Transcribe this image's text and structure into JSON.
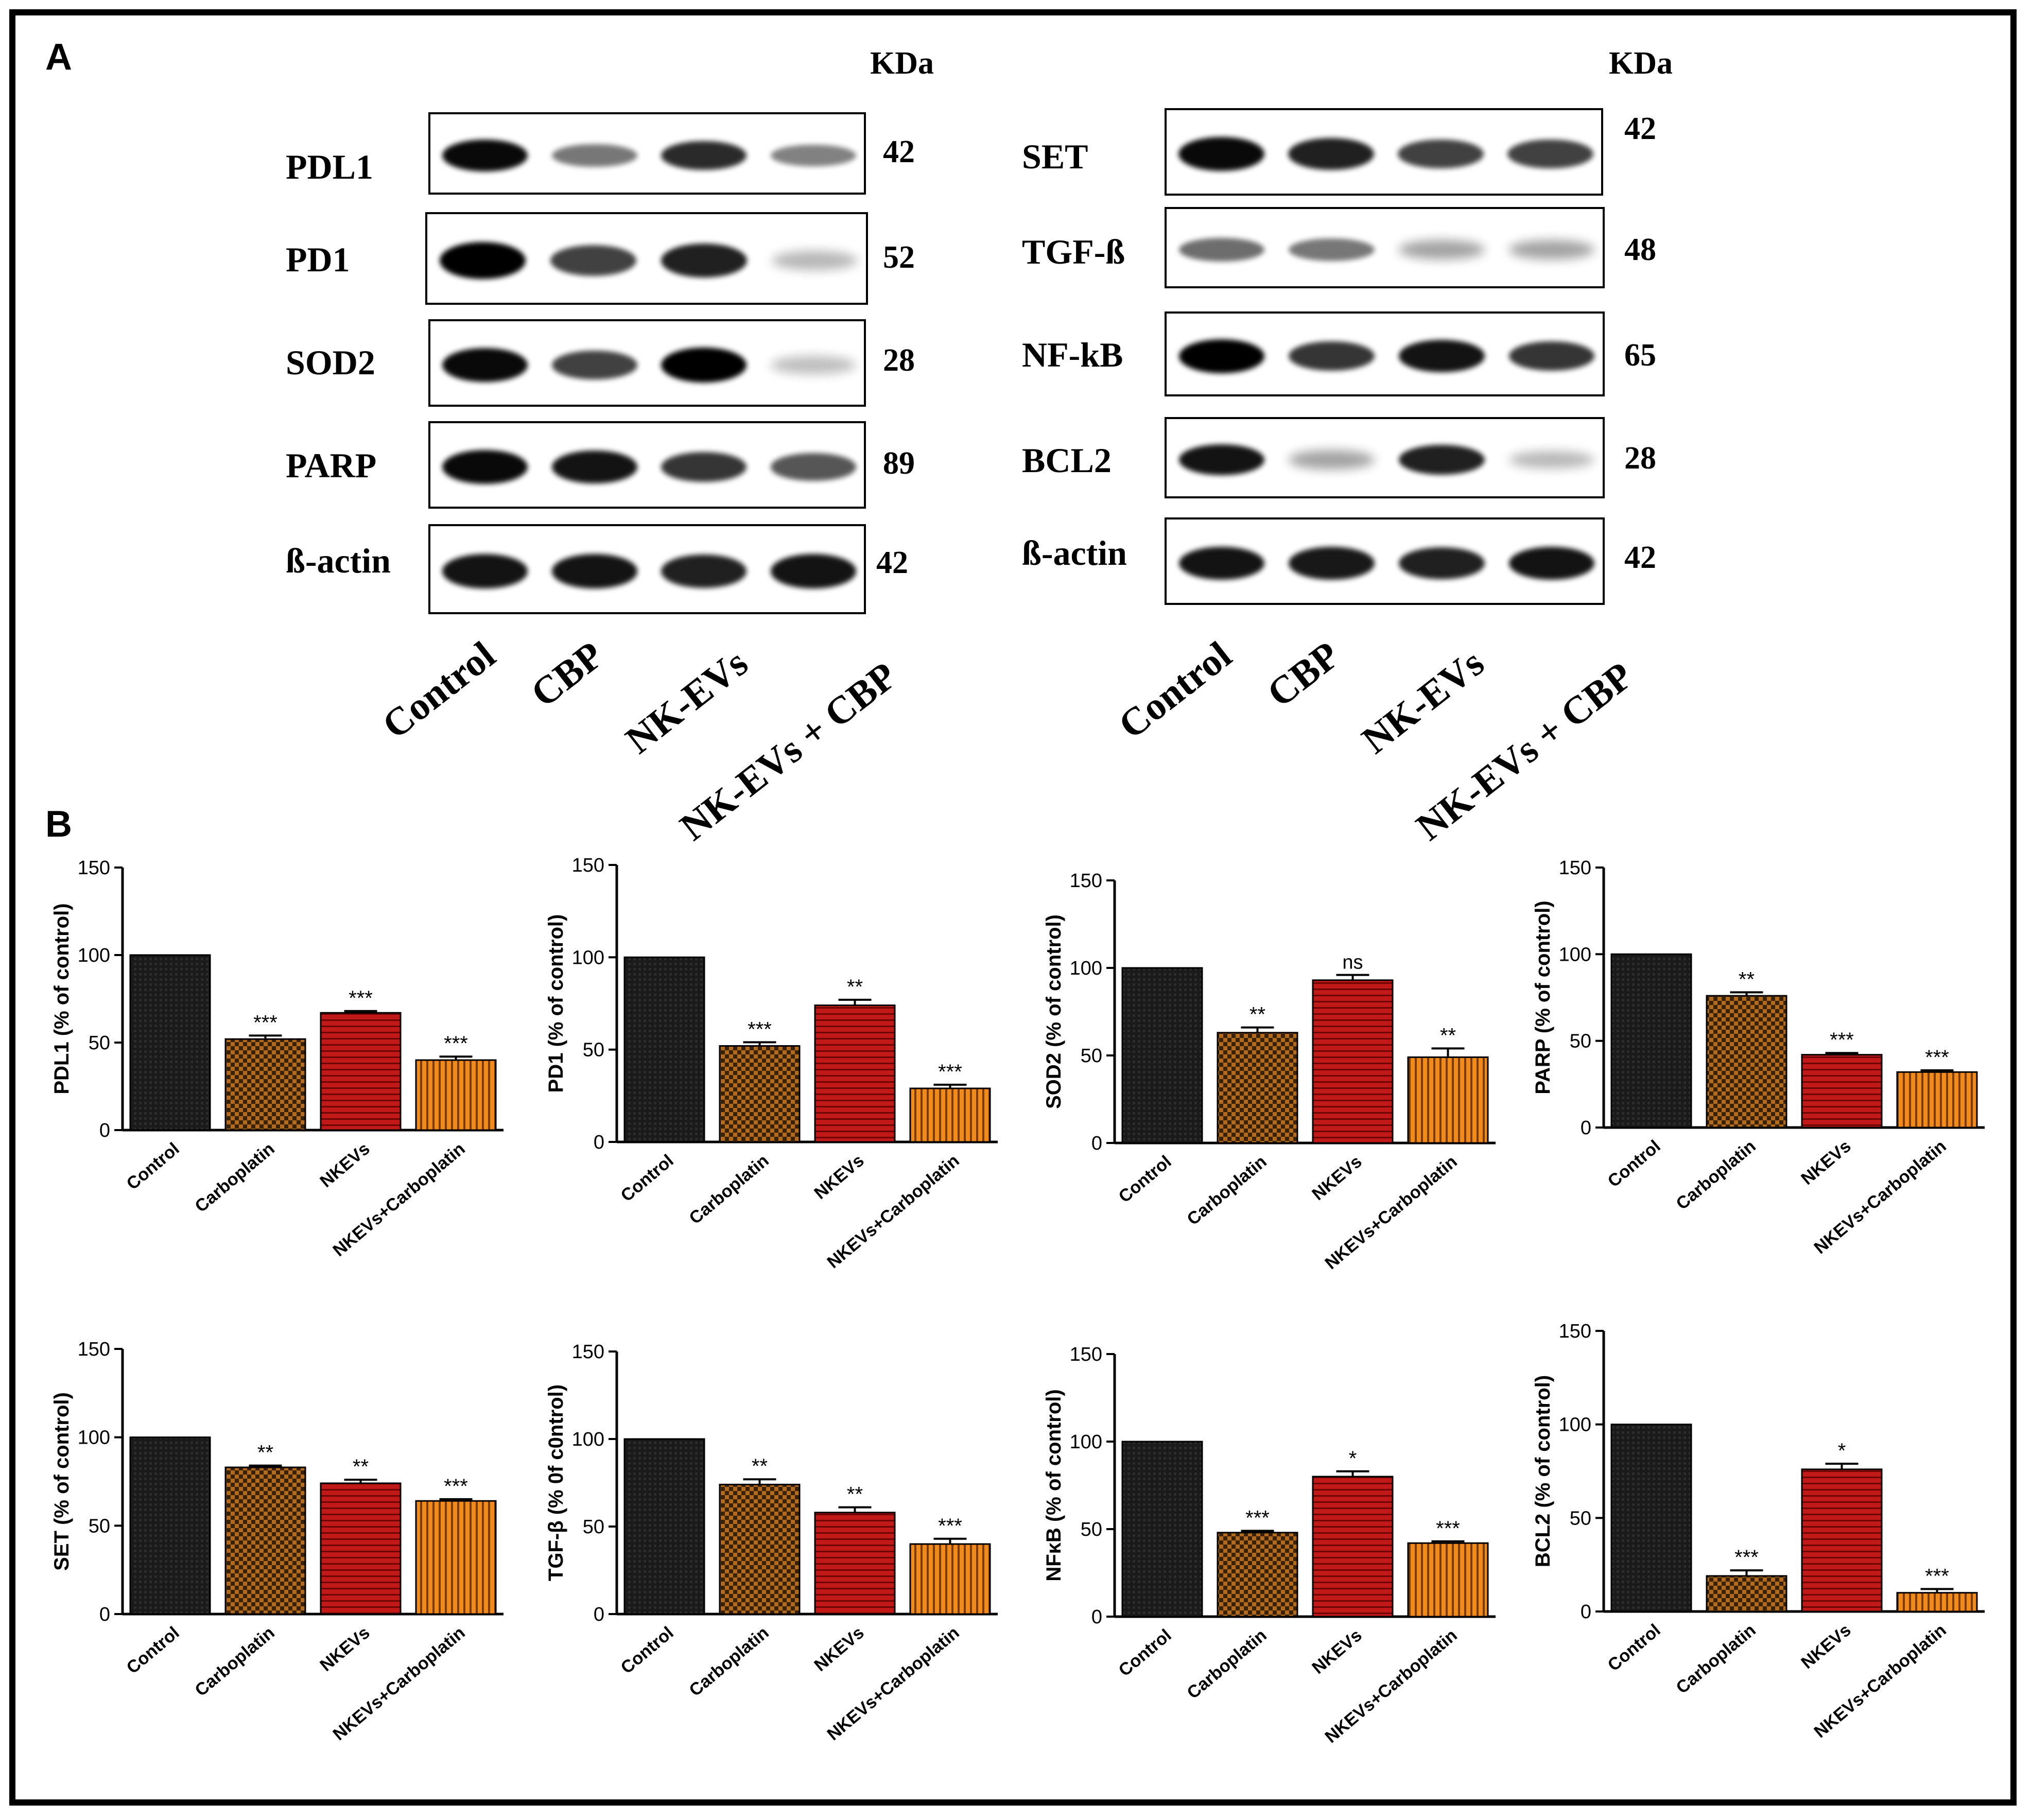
{
  "panel_a": {
    "letter": "A",
    "kda_label": "KDa",
    "lanes": [
      "Control",
      "CBP",
      "NK-EVs",
      "NK-EVs + CBP"
    ],
    "left_blots": [
      {
        "name": "PDL1",
        "kda": "42",
        "intensity": [
          0.95,
          0.45,
          0.8,
          0.4
        ]
      },
      {
        "name": "PD1",
        "kda": "52",
        "intensity": [
          1.0,
          0.7,
          0.85,
          0.15
        ]
      },
      {
        "name": "SOD2",
        "kda": "28",
        "intensity": [
          0.95,
          0.7,
          1.0,
          0.12
        ]
      },
      {
        "name": "PARP",
        "kda": "89",
        "intensity": [
          0.95,
          0.9,
          0.75,
          0.6
        ]
      },
      {
        "name": "ß-actin",
        "kda": "42",
        "intensity": [
          0.9,
          0.9,
          0.85,
          0.9
        ]
      }
    ],
    "right_blots": [
      {
        "name": "SET",
        "kda": "42",
        "intensity": [
          0.95,
          0.85,
          0.7,
          0.7
        ]
      },
      {
        "name": "TGF-ß",
        "kda": "48",
        "intensity": [
          0.5,
          0.45,
          0.25,
          0.25
        ]
      },
      {
        "name": "NF-kB",
        "kda": "65",
        "intensity": [
          1.0,
          0.75,
          0.9,
          0.75
        ]
      },
      {
        "name": "BCL2",
        "kda": "28",
        "intensity": [
          0.9,
          0.25,
          0.85,
          0.15
        ]
      },
      {
        "name": "ß-actin",
        "kda": "42",
        "intensity": [
          0.9,
          0.88,
          0.85,
          0.9
        ]
      }
    ]
  },
  "panel_b": {
    "letter": "B",
    "colors": {
      "control": "#1a1a1a",
      "carboplatin": "#b26a1c",
      "nkevs": "#c11818",
      "combo": "#f08a1a"
    },
    "chart_data": [
      {
        "type": "bar",
        "ylabel": "PDL1 (% of control)",
        "ylim": [
          0,
          150
        ],
        "yticks": [
          "0",
          "50",
          "100",
          "150"
        ],
        "categories": [
          "Control",
          "Carboplatin",
          "NKEVs",
          "NKEVs+Carboplatin"
        ],
        "values": [
          100,
          52,
          67,
          40
        ],
        "errors": [
          0,
          2,
          1,
          2
        ],
        "significance": [
          "",
          "***",
          "***",
          "***"
        ]
      },
      {
        "type": "bar",
        "ylabel": "PD1 (% of control)",
        "ylim": [
          0,
          150
        ],
        "yticks": [
          "0",
          "50",
          "100",
          "150"
        ],
        "categories": [
          "Control",
          "Carboplatin",
          "NKEVs",
          "NKEVs+Carboplatin"
        ],
        "values": [
          100,
          52,
          74,
          29
        ],
        "errors": [
          0,
          2,
          3,
          2
        ],
        "significance": [
          "",
          "***",
          "**",
          "***"
        ]
      },
      {
        "type": "bar",
        "ylabel": "SOD2 (% of control)",
        "ylim": [
          0,
          150
        ],
        "yticks": [
          "0",
          "50",
          "100",
          "150"
        ],
        "categories": [
          "Control",
          "Carboplatin",
          "NKEVs",
          "NKEVs+Carboplatin"
        ],
        "values": [
          100,
          63,
          93,
          49
        ],
        "errors": [
          0,
          3,
          3,
          5
        ],
        "significance": [
          "",
          "**",
          "ns",
          "**"
        ]
      },
      {
        "type": "bar",
        "ylabel": "PARP (% of control)",
        "ylim": [
          0,
          150
        ],
        "yticks": [
          "0",
          "50",
          "100",
          "150"
        ],
        "categories": [
          "Control",
          "Carboplatin",
          "NKEVs",
          "NKEVs+Carboplatin"
        ],
        "values": [
          100,
          76,
          42,
          32
        ],
        "errors": [
          0,
          2,
          1,
          1
        ],
        "significance": [
          "",
          "**",
          "***",
          "***"
        ]
      },
      {
        "type": "bar",
        "ylabel": "SET (% of control)",
        "ylim": [
          0,
          150
        ],
        "yticks": [
          "0",
          "50",
          "100",
          "150"
        ],
        "categories": [
          "Control",
          "Carboplatin",
          "NKEVs",
          "NKEVs+Carboplatin"
        ],
        "values": [
          100,
          83,
          74,
          64
        ],
        "errors": [
          0,
          1,
          2,
          1
        ],
        "significance": [
          "",
          "**",
          "**",
          "***"
        ]
      },
      {
        "type": "bar",
        "ylabel": "TGF-β (% 0f c0ntrol)",
        "ylim": [
          0,
          150
        ],
        "yticks": [
          "0",
          "50",
          "100",
          "150"
        ],
        "categories": [
          "Control",
          "Carboplatin",
          "NKEVs",
          "NKEVs+Carboplatin"
        ],
        "values": [
          100,
          74,
          58,
          40
        ],
        "errors": [
          0,
          3,
          3,
          3
        ],
        "significance": [
          "",
          "**",
          "**",
          "***"
        ]
      },
      {
        "type": "bar",
        "ylabel": "NFκB (% of control)",
        "ylim": [
          0,
          150
        ],
        "yticks": [
          "0",
          "50",
          "100",
          "150"
        ],
        "categories": [
          "Control",
          "Carboplatin",
          "NKEVs",
          "NKEVs+Carboplatin"
        ],
        "values": [
          100,
          48,
          80,
          42
        ],
        "errors": [
          0,
          1,
          3,
          1
        ],
        "significance": [
          "",
          "***",
          "*",
          "***"
        ]
      },
      {
        "type": "bar",
        "ylabel": "BCL2 (% of control)",
        "ylim": [
          0,
          150
        ],
        "yticks": [
          "0",
          "50",
          "100",
          "150"
        ],
        "categories": [
          "Control",
          "Carboplatin",
          "NKEVs",
          "NKEVs+Carboplatin"
        ],
        "values": [
          100,
          19,
          76,
          10
        ],
        "errors": [
          0,
          3,
          3,
          2
        ],
        "significance": [
          "",
          "***",
          "*",
          "***"
        ]
      }
    ]
  }
}
